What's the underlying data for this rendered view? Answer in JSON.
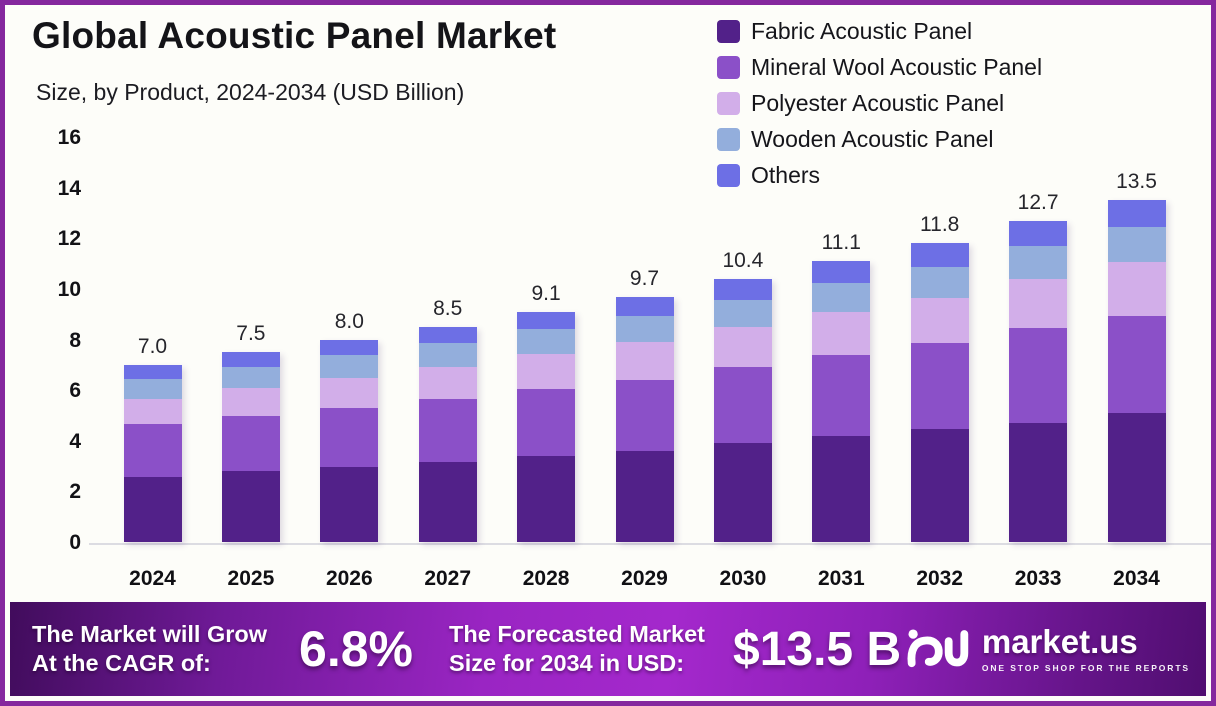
{
  "header": {
    "title": "Global Acoustic Panel Market",
    "subtitle": "Size, by Product, 2024-2034 (USD Billion)"
  },
  "chart_data": {
    "type": "bar",
    "stacked": true,
    "title": "Global Acoustic Panel Market Size, by Product, 2024-2034 (USD Billion)",
    "unit": "USD Billion",
    "categories": [
      "2024",
      "2025",
      "2026",
      "2027",
      "2028",
      "2029",
      "2030",
      "2031",
      "2032",
      "2033",
      "2034"
    ],
    "series": [
      {
        "name": "Fabric Acoustic Panel",
        "color": "#522189",
        "values": [
          2.55,
          2.8,
          2.95,
          3.15,
          3.4,
          3.6,
          3.9,
          4.2,
          4.45,
          4.7,
          5.1
        ]
      },
      {
        "name": "Mineral Wool Acoustic Panel",
        "color": "#8B50C8",
        "values": [
          2.1,
          2.18,
          2.35,
          2.5,
          2.65,
          2.8,
          3.0,
          3.2,
          3.4,
          3.75,
          3.85
        ]
      },
      {
        "name": "Polyester Acoustic Panel",
        "color": "#D2AEE9",
        "values": [
          1.0,
          1.1,
          1.2,
          1.28,
          1.4,
          1.5,
          1.6,
          1.68,
          1.8,
          1.95,
          2.1
        ]
      },
      {
        "name": "Wooden Acoustic Panel",
        "color": "#93AEDC",
        "values": [
          0.8,
          0.82,
          0.88,
          0.92,
          0.97,
          1.02,
          1.08,
          1.14,
          1.22,
          1.3,
          1.4
        ]
      },
      {
        "name": "Others",
        "color": "#6D6FE5",
        "values": [
          0.55,
          0.6,
          0.62,
          0.65,
          0.68,
          0.78,
          0.82,
          0.88,
          0.93,
          1.0,
          1.05
        ]
      }
    ],
    "totals": [
      "7.0",
      "7.5",
      "8.0",
      "8.5",
      "9.1",
      "9.7",
      "10.4",
      "11.1",
      "11.8",
      "12.7",
      "13.5"
    ],
    "ylim": [
      0,
      16
    ],
    "yticks": [
      0,
      2,
      4,
      6,
      8,
      10,
      12,
      14,
      16
    ],
    "grid": false,
    "legend_position": "top-right"
  },
  "footer": {
    "cagr_label_line1": "The Market will Grow",
    "cagr_label_line2": "At the CAGR of:",
    "cagr_value": "6.8%",
    "forecast_label_line1": "The Forecasted Market",
    "forecast_label_line2": "Size for 2034 in USD:",
    "forecast_value": "$13.5 B",
    "brand_name": "market.us",
    "brand_tagline": "ONE STOP SHOP FOR THE REPORTS"
  },
  "colors": {
    "frame_border": "#85289E",
    "axis_line": "#DCDCE2",
    "footer_purple": "#A428CC",
    "text_dark": "#141418"
  }
}
